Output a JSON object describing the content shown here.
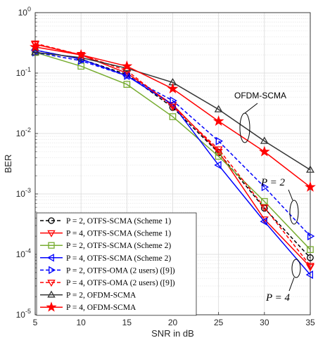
{
  "chart_data": {
    "type": "line",
    "xlabel": "SNR in dB",
    "ylabel": "BER",
    "yscale": "log",
    "xlim": [
      5,
      35
    ],
    "ylim": [
      1e-05,
      1
    ],
    "x_ticks": [
      "5",
      "10",
      "15",
      "20",
      "25",
      "30",
      "35"
    ],
    "y_ticks": [
      {
        "base": "10",
        "exp": "-5",
        "value": 1e-05
      },
      {
        "base": "10",
        "exp": "-4",
        "value": 0.0001
      },
      {
        "base": "10",
        "exp": "-3",
        "value": 0.001
      },
      {
        "base": "10",
        "exp": "-2",
        "value": 0.01
      },
      {
        "base": "10",
        "exp": "-1",
        "value": 0.1
      },
      {
        "base": "10",
        "exp": "0",
        "value": 1
      }
    ],
    "grid": true,
    "legend_position": "bottom-left",
    "x": [
      5,
      10,
      15,
      20,
      25,
      30,
      35
    ],
    "series": [
      {
        "name": "P = 2, OTFS-SCMA (Scheme 1)",
        "color": "#000000",
        "marker": "circle",
        "dash": "dashed",
        "values": [
          0.24,
          0.17,
          0.095,
          0.027,
          0.0048,
          0.00058,
          8.8e-05
        ]
      },
      {
        "name": "P = 4, OTFS-SCMA (Scheme 1)",
        "color": "#ff0000",
        "marker": "triangle-down",
        "dash": "solid",
        "values": [
          0.3,
          0.2,
          0.1,
          0.03,
          0.005,
          0.00038,
          6.2e-05
        ]
      },
      {
        "name": "P = 2, OTFS-SCMA (Scheme 2)",
        "color": "#77ac30",
        "marker": "square",
        "dash": "solid",
        "values": [
          0.22,
          0.13,
          0.065,
          0.019,
          0.0042,
          0.00075,
          0.00012
        ]
      },
      {
        "name": "P = 4, OTFS-SCMA (Scheme 2)",
        "color": "#0000ff",
        "marker": "triangle-left",
        "dash": "solid",
        "values": [
          0.24,
          0.17,
          0.09,
          0.03,
          0.003,
          0.00035,
          4.6e-05
        ]
      },
      {
        "name": "P = 2, OTFS-OMA (2 users) ([9])",
        "color": "#0000ff",
        "marker": "triangle-right",
        "dash": "dashed",
        "values": [
          0.22,
          0.16,
          0.09,
          0.035,
          0.0075,
          0.0013,
          0.0002
        ]
      },
      {
        "name": "P = 4, OTFS-OMA (2 users) ([9])",
        "color": "#ff0000",
        "marker": "triangle-down",
        "dash": "dashed",
        "values": [
          0.31,
          0.2,
          0.11,
          0.028,
          0.0055,
          0.0006,
          6.5e-05
        ]
      },
      {
        "name": "P = 2, OFDM-SCMA",
        "color": "#333333",
        "marker": "triangle-up",
        "dash": "solid",
        "values": [
          0.22,
          0.18,
          0.12,
          0.07,
          0.025,
          0.0075,
          0.0025
        ]
      },
      {
        "name": "P = 4, OFDM-SCMA",
        "color": "#ff0000",
        "marker": "star",
        "dash": "solid",
        "values": [
          0.27,
          0.2,
          0.13,
          0.055,
          0.016,
          0.005,
          0.0013
        ]
      }
    ],
    "annotations": [
      {
        "text": "OFDM-SCMA",
        "kind": "label"
      },
      {
        "text": "P = 2",
        "kind": "math"
      },
      {
        "text": "P = 4",
        "kind": "math"
      }
    ]
  }
}
